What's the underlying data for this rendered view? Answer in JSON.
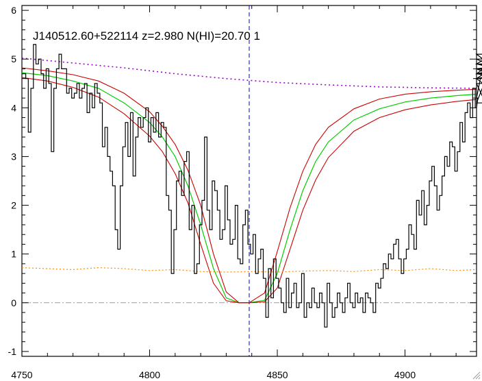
{
  "chart_data": {
    "type": "line",
    "title": "J140512.60+522114 z=2.980 N(HI)=20.70 1",
    "xlim": [
      4750,
      4928
    ],
    "ylim": [
      -1.1,
      6.1
    ],
    "x_ticks": [
      4750,
      4800,
      4850,
      4900
    ],
    "y_ticks": [
      -1,
      0,
      1,
      2,
      3,
      4,
      5,
      6
    ],
    "line_center_x": 4839,
    "zero_level": 0,
    "grid": false,
    "colors": {
      "spectrum": "#000000",
      "fit": "#00cc00",
      "fit_bounds": "#cc0000",
      "continuum": "#9900cc",
      "error": "#ff8800",
      "center_line": "#0000cc",
      "zero_line": "#999999"
    },
    "spectrum": {
      "x_start": 4750,
      "dx": 1,
      "y": [
        4.7,
        4.7,
        4.6,
        3.5,
        4.4,
        5.3,
        4.9,
        5.0,
        4.7,
        4.4,
        4.8,
        4.5,
        3.1,
        4.4,
        4.8,
        5.1,
        4.8,
        4.8,
        4.3,
        4.4,
        4.2,
        4.3,
        4.5,
        4.2,
        4.4,
        4.5,
        3.9,
        4.3,
        4.0,
        4.5,
        4.3,
        4.1,
        3.2,
        3.6,
        3.0,
        2.7,
        2.4,
        1.5,
        1.1,
        2.4,
        3.2,
        3.7,
        3.0,
        3.9,
        2.6,
        3.4,
        3.8,
        3.6,
        3.8,
        4.0,
        3.3,
        3.8,
        3.5,
        3.9,
        3.4,
        3.7,
        3.6,
        2.2,
        1.9,
        0.6,
        1.5,
        2.5,
        2.7,
        2.2,
        2.9,
        3.1,
        1.5,
        2.0,
        0.6,
        0.8,
        1.6,
        2.1,
        3.4,
        1.9,
        1.5,
        2.5,
        2.3,
        1.9,
        1.3,
        1.5,
        2.4,
        1.7,
        1.2,
        1.3,
        2.0,
        0.9,
        0.8,
        1.6,
        1.9,
        1.2,
        1.0,
        1.4,
        0.6,
        0.9,
        1.1,
        0.5,
        -0.3,
        0.7,
        0.1,
        0.9,
        0.5,
        0.3,
        0.0,
        -0.2,
        0.5,
        -0.1,
        0.2,
        0.4,
        -0.1,
        0.0,
        0.6,
        -0.3,
        0.0,
        -0.1,
        0.3,
        0.0,
        -0.1,
        0.2,
        0.0,
        -0.5,
        0.4,
        0.0,
        -0.3,
        -0.1,
        0.2,
        0.0,
        -0.2,
        0.1,
        0.4,
        0.0,
        -0.1,
        0.2,
        0.0,
        0.1,
        -0.2,
        0.2,
        0.1,
        0.0,
        -0.2,
        0.4,
        0.3,
        0.5,
        0.8,
        0.7,
        1.0,
        0.9,
        1.2,
        1.3,
        0.9,
        0.6,
        0.9,
        1.1,
        1.6,
        1.4,
        1.1,
        2.1,
        1.8,
        2.3,
        1.6,
        2.0,
        2.5,
        2.8,
        2.4,
        1.9,
        2.2,
        2.6,
        3.0,
        2.8,
        3.3,
        3.2,
        2.7,
        3.1,
        3.7,
        3.3,
        3.9,
        4.1,
        3.8,
        4.4,
        4.0,
        4.2,
        4.6,
        4.5,
        4.1,
        4.7,
        4.9,
        5.1,
        4.8,
        4.6,
        4.7,
        4.6,
        5.0,
        4.7,
        4.8,
        4.9,
        4.7,
        4.8,
        4.8,
        4.7,
        4.9,
        4.8
      ]
    },
    "series": [
      {
        "name": "",
        "role": "fit",
        "x": [
          4750,
          4760,
          4770,
          4780,
          4790,
          4800,
          4805,
          4810,
          4815,
          4820,
          4825,
          4830,
          4835,
          4839,
          4845,
          4850,
          4855,
          4860,
          4865,
          4870,
          4880,
          4890,
          4900,
          4910,
          4920,
          4928
        ],
        "y": [
          4.72,
          4.66,
          4.55,
          4.4,
          4.1,
          3.7,
          3.4,
          3.0,
          2.4,
          1.6,
          0.7,
          0.1,
          0.0,
          0.0,
          0.05,
          0.6,
          1.5,
          2.3,
          2.9,
          3.3,
          3.75,
          3.98,
          4.12,
          4.2,
          4.25,
          4.28
        ]
      },
      {
        "name": "",
        "role": "fit-upper",
        "x": [
          4750,
          4760,
          4770,
          4780,
          4790,
          4800,
          4805,
          4810,
          4815,
          4820,
          4825,
          4830,
          4835,
          4839,
          4845,
          4850,
          4855,
          4860,
          4865,
          4870,
          4880,
          4890,
          4900,
          4910,
          4920,
          4928
        ],
        "y": [
          4.82,
          4.76,
          4.68,
          4.55,
          4.3,
          3.92,
          3.62,
          3.25,
          2.72,
          2.0,
          1.0,
          0.22,
          0.0,
          0.0,
          0.2,
          1.05,
          1.95,
          2.7,
          3.25,
          3.6,
          3.98,
          4.18,
          4.28,
          4.33,
          4.36,
          4.38
        ]
      },
      {
        "name": "",
        "role": "fit-lower",
        "x": [
          4750,
          4760,
          4770,
          4780,
          4790,
          4800,
          4805,
          4810,
          4815,
          4820,
          4825,
          4830,
          4835,
          4839,
          4845,
          4850,
          4855,
          4860,
          4865,
          4870,
          4880,
          4890,
          4900,
          4910,
          4920,
          4928
        ],
        "y": [
          4.62,
          4.55,
          4.42,
          4.22,
          3.88,
          3.42,
          3.1,
          2.65,
          2.05,
          1.2,
          0.4,
          0.04,
          0.0,
          0.0,
          0.02,
          0.3,
          1.1,
          1.9,
          2.52,
          2.98,
          3.52,
          3.8,
          3.96,
          4.06,
          4.13,
          4.17
        ]
      },
      {
        "name": "",
        "role": "continuum",
        "x": [
          4750,
          4770,
          4790,
          4810,
          4830,
          4850,
          4870,
          4890,
          4910,
          4928
        ],
        "y": [
          5.02,
          4.92,
          4.82,
          4.7,
          4.6,
          4.52,
          4.47,
          4.43,
          4.41,
          4.4
        ]
      },
      {
        "name": "",
        "role": "error",
        "x": [
          4750,
          4760,
          4770,
          4780,
          4790,
          4800,
          4810,
          4820,
          4830,
          4840,
          4850,
          4860,
          4870,
          4880,
          4890,
          4900,
          4910,
          4920,
          4928
        ],
        "y": [
          0.72,
          0.7,
          0.68,
          0.72,
          0.7,
          0.66,
          0.68,
          0.64,
          0.63,
          0.64,
          0.63,
          0.65,
          0.66,
          0.64,
          0.68,
          0.66,
          0.7,
          0.66,
          0.68
        ]
      }
    ]
  }
}
